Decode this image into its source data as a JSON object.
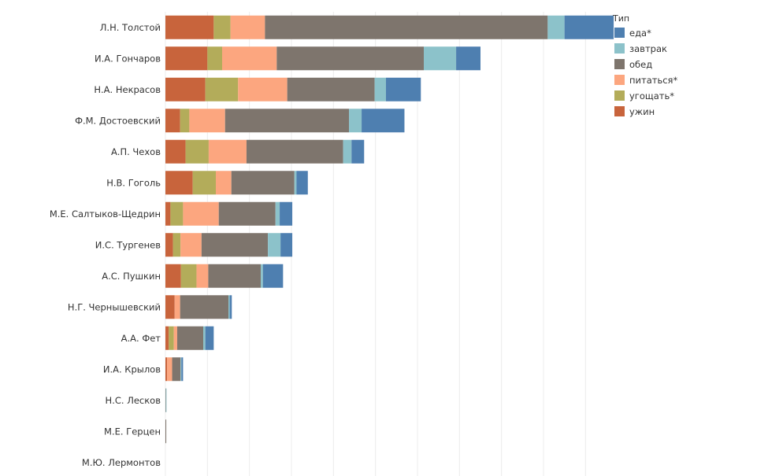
{
  "chart_data": {
    "type": "bar",
    "orientation": "horizontal",
    "stacked": true,
    "grid": true,
    "legend_position": "top-right",
    "xlim": [
      0,
      1050
    ],
    "categories": [
      "Л.Н. Толстой",
      "И.А. Гончаров",
      "Н.А. Некрасов",
      "Ф.М. Достоевский",
      "А.П. Чехов",
      "Н.В. Гоголь",
      "М.Е. Салтыков-Щедрин",
      "И.С. Тургенев",
      "А.С. Пушкин",
      "Н.Г. Чернышевский",
      "А.А. Фет",
      "И.А. Крылов",
      "Н.С. Лесков",
      "М.Е. Герцен",
      "М.Ю. Лермонтов"
    ],
    "series": [
      {
        "name": "ужин",
        "color": "#C8643C",
        "values": [
          115,
          100,
          95,
          35,
          48,
          65,
          12,
          18,
          37,
          22,
          8,
          4,
          0,
          0,
          0
        ]
      },
      {
        "name": "угощать*",
        "color": "#B3AC5A",
        "values": [
          40,
          35,
          78,
          22,
          55,
          55,
          30,
          18,
          37,
          0,
          12,
          0,
          0,
          0,
          0
        ]
      },
      {
        "name": "питаться*",
        "color": "#FCA67F",
        "values": [
          82,
          130,
          117,
          85,
          90,
          37,
          85,
          50,
          28,
          13,
          8,
          12,
          0,
          0,
          0
        ]
      },
      {
        "name": "обед",
        "color": "#7E756D",
        "values": [
          673,
          350,
          208,
          295,
          230,
          150,
          135,
          158,
          125,
          115,
          62,
          20,
          1,
          2,
          0
        ]
      },
      {
        "name": "завтрак",
        "color": "#8CC2CA",
        "values": [
          40,
          77,
          27,
          30,
          20,
          5,
          10,
          30,
          5,
          3,
          5,
          2,
          1,
          0,
          0
        ]
      },
      {
        "name": "еда*",
        "color": "#4E7FB0",
        "values": [
          117,
          58,
          83,
          102,
          30,
          27,
          30,
          28,
          48,
          5,
          20,
          4,
          0,
          0,
          0
        ]
      }
    ],
    "legend": {
      "title": "Тип",
      "order": [
        "еда*",
        "завтрак",
        "обед",
        "питаться*",
        "угощать*",
        "ужин"
      ]
    }
  }
}
